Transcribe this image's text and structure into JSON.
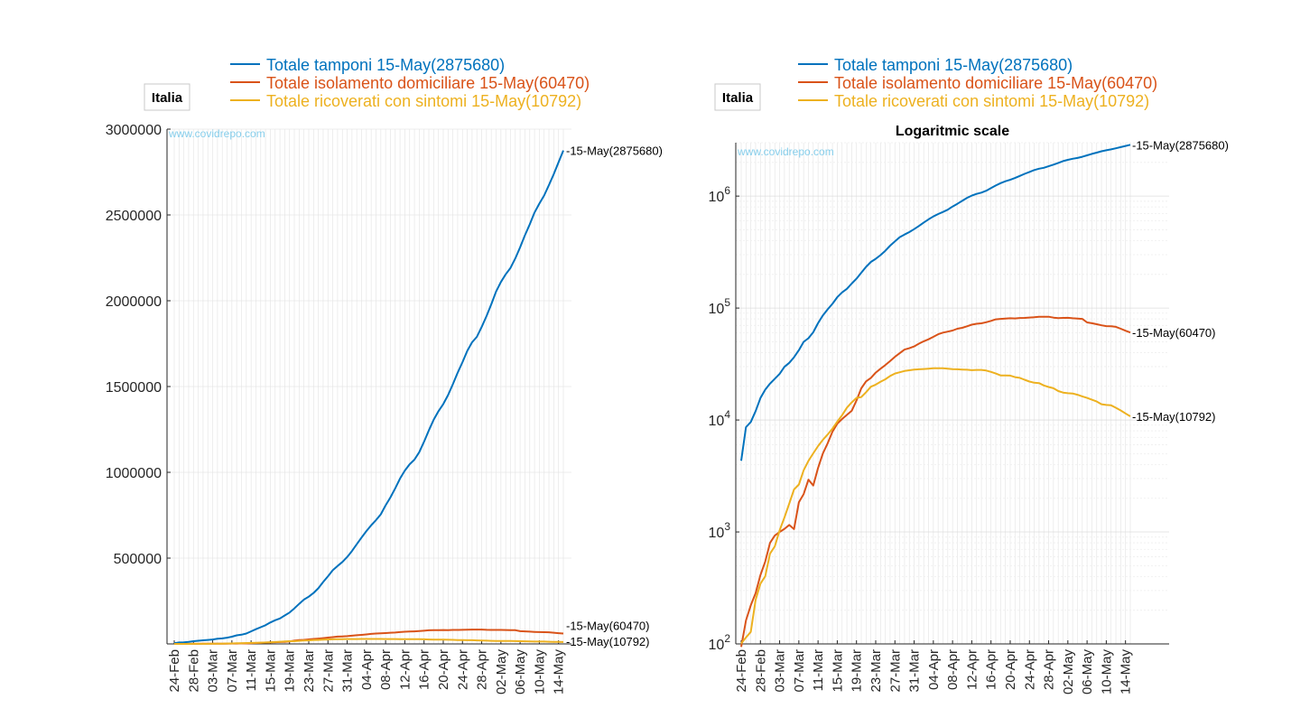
{
  "colors": {
    "tamponi": "#0072BD",
    "isolamento": "#D95319",
    "ricoverati": "#EDB120",
    "watermark": "#87CEEB",
    "grid": "#e6e6e6",
    "axis": "#262626"
  },
  "legend": [
    {
      "text": "Totale tamponi 15-May(2875680)",
      "color_key": "tamponi"
    },
    {
      "text": "Totale isolamento domiciliare 15-May(60470)",
      "color_key": "isolamento"
    },
    {
      "text": "Totale ricoverati con sintomi 15-May(10792)",
      "color_key": "ricoverati"
    }
  ],
  "region_label": "Italia",
  "watermark": "www.covidrepo.com",
  "chart_data": [
    {
      "type": "line",
      "title": "",
      "xlabel": "",
      "ylabel": "",
      "yscale": "linear",
      "ylim": [
        0,
        3000000
      ],
      "yticks": [
        500000,
        1000000,
        1500000,
        2000000,
        2500000,
        3000000
      ],
      "ytick_labels": [
        "500000",
        "1000000",
        "1500000",
        "2000000",
        "2500000",
        "3000000"
      ],
      "grid": true,
      "legend_position": "top",
      "x_tick_labels": [
        "24-Feb",
        "28-Feb",
        "03-Mar",
        "07-Mar",
        "11-Mar",
        "15-Mar",
        "19-Mar",
        "23-Mar",
        "27-Mar",
        "31-Mar",
        "04-Apr",
        "08-Apr",
        "12-Apr",
        "16-Apr",
        "20-Apr",
        "24-Apr",
        "28-Apr",
        "02-May",
        "06-May",
        "10-May",
        "14-May"
      ],
      "end_labels": [
        "15-May(2875680)",
        "15-May(60470)",
        "15-May(10792)"
      ]
    },
    {
      "type": "line",
      "title": "Logaritmic scale",
      "xlabel": "",
      "ylabel": "",
      "yscale": "log",
      "ylim": [
        100,
        3000000
      ],
      "yticks": [
        100,
        1000,
        10000,
        100000,
        1000000
      ],
      "ytick_labels": [
        "10^2",
        "10^3",
        "10^4",
        "10^5",
        "10^6"
      ],
      "grid": true,
      "legend_position": "top",
      "x_tick_labels": [
        "24-Feb",
        "28-Feb",
        "03-Mar",
        "07-Mar",
        "11-Mar",
        "15-Mar",
        "19-Mar",
        "23-Mar",
        "27-Mar",
        "31-Mar",
        "04-Apr",
        "08-Apr",
        "12-Apr",
        "16-Apr",
        "20-Apr",
        "24-Apr",
        "28-Apr",
        "02-May",
        "06-May",
        "10-May",
        "14-May"
      ],
      "end_labels": [
        "15-May(2875680)",
        "15-May(60470)",
        "15-May(10792)"
      ]
    }
  ],
  "series": {
    "dates_start": "24-Feb",
    "dates_end": "15-May",
    "tamponi": {
      "name": "Totale tamponi",
      "points": [
        [
          "24-Feb",
          4324
        ],
        [
          "25-Feb",
          8623
        ],
        [
          "26-Feb",
          9587
        ],
        [
          "27-Feb",
          12014
        ],
        [
          "28-Feb",
          15695
        ],
        [
          "29-Feb",
          18661
        ],
        [
          "01-Mar",
          21127
        ],
        [
          "02-Mar",
          23345
        ],
        [
          "03-Mar",
          25856
        ],
        [
          "04-Mar",
          29837
        ],
        [
          "05-Mar",
          32362
        ],
        [
          "06-Mar",
          36359
        ],
        [
          "07-Mar",
          42062
        ],
        [
          "08-Mar",
          49937
        ],
        [
          "09-Mar",
          53826
        ],
        [
          "10-Mar",
          60761
        ],
        [
          "11-Mar",
          73154
        ],
        [
          "12-Mar",
          86011
        ],
        [
          "13-Mar",
          97488
        ],
        [
          "14-Mar",
          109170
        ],
        [
          "15-Mar",
          124899
        ],
        [
          "16-Mar",
          137962
        ],
        [
          "17-Mar",
          148657
        ],
        [
          "18-Mar",
          165541
        ],
        [
          "19-Mar",
          182777
        ],
        [
          "20-Mar",
          206886
        ],
        [
          "21-Mar",
          233222
        ],
        [
          "22-Mar",
          258402
        ],
        [
          "23-Mar",
          275468
        ],
        [
          "24-Mar",
          296964
        ],
        [
          "25-Mar",
          324445
        ],
        [
          "26-Mar",
          361060
        ],
        [
          "27-Mar",
          394079
        ],
        [
          "28-Mar",
          429526
        ],
        [
          "29-Mar",
          454030
        ],
        [
          "30-Mar",
          477359
        ],
        [
          "31-Mar",
          506968
        ],
        [
          "01-Apr",
          541423
        ],
        [
          "02-Apr",
          581232
        ],
        [
          "03-Apr",
          619849
        ],
        [
          "04-Apr",
          657224
        ],
        [
          "05-Apr",
          691461
        ],
        [
          "06-Apr",
          721732
        ],
        [
          "07-Apr",
          755445
        ],
        [
          "08-Apr",
          807125
        ],
        [
          "09-Apr",
          853369
        ],
        [
          "10-Apr",
          906864
        ],
        [
          "11-Apr",
          963473
        ],
        [
          "12-Apr",
          1010193
        ],
        [
          "13-Apr",
          1046910
        ],
        [
          "14-Apr",
          1073689
        ],
        [
          "15-Apr",
          1117404
        ],
        [
          "16-Apr",
          1178403
        ],
        [
          "17-Apr",
          1244108
        ],
        [
          "18-Apr",
          1305833
        ],
        [
          "19-Apr",
          1356541
        ],
        [
          "20-Apr",
          1398024
        ],
        [
          "21-Apr",
          1450150
        ],
        [
          "22-Apr",
          1513251
        ],
        [
          "23-Apr",
          1579909
        ],
        [
          "24-Apr",
          1642356
        ],
        [
          "25-Apr",
          1707743
        ],
        [
          "26-Apr",
          1757659
        ],
        [
          "27-Apr",
          1789662
        ],
        [
          "28-Apr",
          1846934
        ],
        [
          "29-Apr",
          1910761
        ],
        [
          "30-Apr",
          1979217
        ],
        [
          "01-May",
          2053425
        ],
        [
          "02-May",
          2108837
        ],
        [
          "03-May",
          2153772
        ],
        [
          "04-May",
          2191403
        ],
        [
          "05-May",
          2246666
        ],
        [
          "06-May",
          2310929
        ],
        [
          "07-May",
          2381288
        ],
        [
          "08-May",
          2445063
        ],
        [
          "09-May",
          2514234
        ],
        [
          "10-May",
          2565912
        ],
        [
          "11-May",
          2613358
        ],
        [
          "12-May",
          2673655
        ],
        [
          "13-May",
          2738150
        ],
        [
          "14-May",
          2807504
        ],
        [
          "15-May",
          2875680
        ]
      ]
    },
    "isolamento": {
      "name": "Totale isolamento domiciliare",
      "points": [
        [
          "24-Feb",
          94
        ],
        [
          "25-Feb",
          162
        ],
        [
          "26-Feb",
          221
        ],
        [
          "27-Feb",
          284
        ],
        [
          "28-Feb",
          412
        ],
        [
          "29-Feb",
          543
        ],
        [
          "01-Mar",
          798
        ],
        [
          "02-Mar",
          927
        ],
        [
          "03-Mar",
          1000
        ],
        [
          "04-Mar",
          1065
        ],
        [
          "05-Mar",
          1155
        ],
        [
          "06-Mar",
          1060
        ],
        [
          "07-Mar",
          1843
        ],
        [
          "08-Mar",
          2180
        ],
        [
          "09-Mar",
          2936
        ],
        [
          "10-Mar",
          2599
        ],
        [
          "11-Mar",
          3724
        ],
        [
          "12-Mar",
          5036
        ],
        [
          "13-Mar",
          6201
        ],
        [
          "14-Mar",
          7860
        ],
        [
          "15-Mar",
          9268
        ],
        [
          "16-Mar",
          10197
        ],
        [
          "17-Mar",
          11108
        ],
        [
          "18-Mar",
          12090
        ],
        [
          "19-Mar",
          14935
        ],
        [
          "20-Mar",
          19185
        ],
        [
          "21-Mar",
          22116
        ],
        [
          "22-Mar",
          23783
        ],
        [
          "23-Mar",
          26522
        ],
        [
          "24-Mar",
          28697
        ],
        [
          "25-Mar",
          30920
        ],
        [
          "26-Mar",
          33648
        ],
        [
          "27-Mar",
          36653
        ],
        [
          "28-Mar",
          39533
        ],
        [
          "29-Mar",
          42588
        ],
        [
          "30-Mar",
          43752
        ],
        [
          "31-Mar",
          45420
        ],
        [
          "01-Apr",
          48134
        ],
        [
          "02-Apr",
          50456
        ],
        [
          "03-Apr",
          52579
        ],
        [
          "04-Apr",
          55270
        ],
        [
          "05-Apr",
          58320
        ],
        [
          "06-Apr",
          60313
        ],
        [
          "07-Apr",
          61557
        ],
        [
          "08-Apr",
          62927
        ],
        [
          "09-Apr",
          65392
        ],
        [
          "10-Apr",
          66534
        ],
        [
          "11-Apr",
          68744
        ],
        [
          "12-Apr",
          71063
        ],
        [
          "13-Apr",
          72333
        ],
        [
          "14-Apr",
          73094
        ],
        [
          "15-Apr",
          74696
        ],
        [
          "16-Apr",
          76778
        ],
        [
          "17-Apr",
          79284
        ],
        [
          "18-Apr",
          80031
        ],
        [
          "19-Apr",
          80589
        ],
        [
          "20-Apr",
          81104
        ],
        [
          "21-Apr",
          80758
        ],
        [
          "22-Apr",
          81510
        ],
        [
          "23-Apr",
          81708
        ],
        [
          "24-Apr",
          82286
        ],
        [
          "25-Apr",
          82722
        ],
        [
          "26-Apr",
          83504
        ],
        [
          "27-Apr",
          83652
        ],
        [
          "28-Apr",
          83619
        ],
        [
          "29-Apr",
          82212
        ],
        [
          "30-Apr",
          81436
        ],
        [
          "01-May",
          81708
        ],
        [
          "02-May",
          81808
        ],
        [
          "03-May",
          81104
        ],
        [
          "04-May",
          80589
        ],
        [
          "05-May",
          80031
        ],
        [
          "06-May",
          74426
        ],
        [
          "07-May",
          73139
        ],
        [
          "08-May",
          71679
        ],
        [
          "09-May",
          70187
        ],
        [
          "10-May",
          69028
        ],
        [
          "11-May",
          68679
        ],
        [
          "12-May",
          67950
        ],
        [
          "13-May",
          65392
        ],
        [
          "14-May",
          62752
        ],
        [
          "15-May",
          60470
        ]
      ]
    },
    "ricoverati": {
      "name": "Totale ricoverati con sintomi",
      "points": [
        [
          "24-Feb",
          101
        ],
        [
          "25-Feb",
          114
        ],
        [
          "26-Feb",
          128
        ],
        [
          "27-Feb",
          248
        ],
        [
          "28-Feb",
          345
        ],
        [
          "29-Feb",
          401
        ],
        [
          "01-Mar",
          639
        ],
        [
          "02-Mar",
          742
        ],
        [
          "03-Mar",
          1034
        ],
        [
          "04-Mar",
          1346
        ],
        [
          "05-Mar",
          1790
        ],
        [
          "06-Mar",
          2394
        ],
        [
          "07-Mar",
          2651
        ],
        [
          "08-Mar",
          3557
        ],
        [
          "09-Mar",
          4316
        ],
        [
          "10-Mar",
          5038
        ],
        [
          "11-Mar",
          5838
        ],
        [
          "12-Mar",
          6650
        ],
        [
          "13-Mar",
          7426
        ],
        [
          "14-Mar",
          8372
        ],
        [
          "15-Mar",
          9663
        ],
        [
          "16-Mar",
          11025
        ],
        [
          "17-Mar",
          12894
        ],
        [
          "18-Mar",
          14363
        ],
        [
          "19-Mar",
          15757
        ],
        [
          "20-Mar",
          16020
        ],
        [
          "21-Mar",
          17708
        ],
        [
          "22-Mar",
          19846
        ],
        [
          "23-Mar",
          20692
        ],
        [
          "24-Mar",
          21937
        ],
        [
          "25-Mar",
          23112
        ],
        [
          "26-Mar",
          24753
        ],
        [
          "27-Mar",
          26029
        ],
        [
          "28-Mar",
          26676
        ],
        [
          "29-Mar",
          27386
        ],
        [
          "30-Mar",
          27795
        ],
        [
          "31-Mar",
          28192
        ],
        [
          "01-Apr",
          28403
        ],
        [
          "02-Apr",
          28540
        ],
        [
          "03-Apr",
          28741
        ],
        [
          "04-Apr",
          29010
        ],
        [
          "05-Apr",
          28949
        ],
        [
          "06-Apr",
          28976
        ],
        [
          "07-Apr",
          28718
        ],
        [
          "08-Apr",
          28485
        ],
        [
          "09-Apr",
          28399
        ],
        [
          "10-Apr",
          28242
        ],
        [
          "11-Apr",
          28144
        ],
        [
          "12-Apr",
          27847
        ],
        [
          "13-Apr",
          28023
        ],
        [
          "14-Apr",
          28011
        ],
        [
          "15-Apr",
          27643
        ],
        [
          "16-Apr",
          26893
        ],
        [
          "17-Apr",
          26033
        ],
        [
          "18-Apr",
          25007
        ],
        [
          "19-Apr",
          25033
        ],
        [
          "20-Apr",
          24906
        ],
        [
          "21-Apr",
          24134
        ],
        [
          "22-Apr",
          23805
        ],
        [
          "23-Apr",
          22871
        ],
        [
          "24-Apr",
          22068
        ],
        [
          "25-Apr",
          21533
        ],
        [
          "26-Apr",
          21372
        ],
        [
          "27-Apr",
          20353
        ],
        [
          "28-Apr",
          19723
        ],
        [
          "29-Apr",
          19210
        ],
        [
          "30-Apr",
          18149
        ],
        [
          "01-May",
          17569
        ],
        [
          "02-May",
          17357
        ],
        [
          "03-May",
          17242
        ],
        [
          "04-May",
          16823
        ],
        [
          "05-May",
          16270
        ],
        [
          "06-May",
          15769
        ],
        [
          "07-May",
          15174
        ],
        [
          "08-May",
          14636
        ],
        [
          "09-May",
          13834
        ],
        [
          "10-May",
          13618
        ],
        [
          "11-May",
          13539
        ],
        [
          "12-May",
          12865
        ],
        [
          "13-May",
          12172
        ],
        [
          "14-May",
          11453
        ],
        [
          "15-May",
          10792
        ]
      ]
    }
  }
}
